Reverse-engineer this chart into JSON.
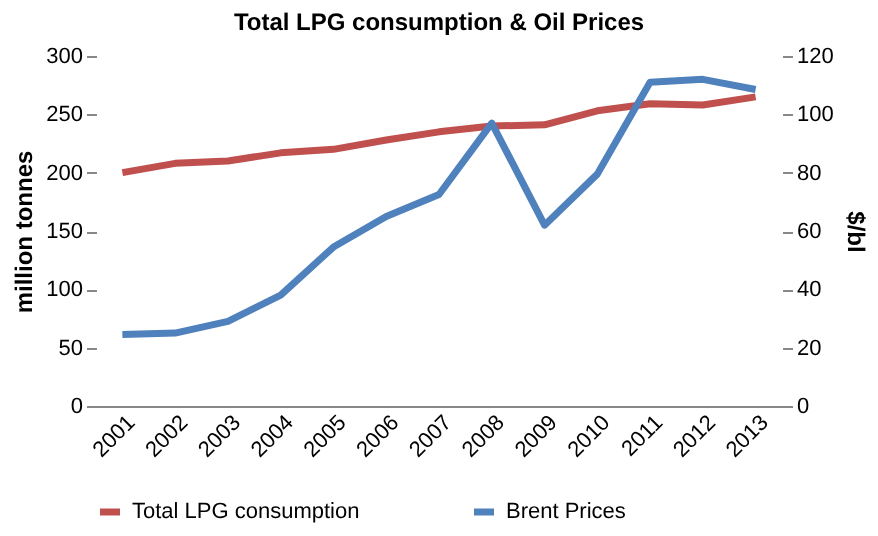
{
  "chart_data": {
    "type": "line",
    "title": "Total LPG consumption & Oil Prices",
    "ylabel": "million tonnes",
    "y2label": "$/bl",
    "categories": [
      "2001",
      "2002",
      "2003",
      "2004",
      "2005",
      "2006",
      "2007",
      "2008",
      "2009",
      "2010",
      "2011",
      "2012",
      "2013"
    ],
    "series": [
      {
        "name": "Total LPG consumption",
        "color": "#c0504d",
        "values": [
          200,
          208,
          210,
          217,
          220,
          228,
          235,
          240,
          241,
          253,
          259,
          258,
          265
        ]
      },
      {
        "name": "Brent Prices",
        "color": "#4f81bd",
        "axis": "y2",
        "values": [
          24.5,
          25,
          29,
          38,
          54.5,
          65,
          72.5,
          97,
          62,
          79.5,
          111,
          112,
          108.5
        ]
      }
    ],
    "ylim": [
      0,
      300
    ],
    "yticks": [
      0,
      50,
      100,
      150,
      200,
      250,
      300
    ],
    "y2lim": [
      0,
      120
    ],
    "y2ticks": [
      0,
      20,
      40,
      60,
      80,
      100,
      120
    ],
    "grid": false,
    "legend": "bottom",
    "marker": "none",
    "line_style": "solid"
  }
}
